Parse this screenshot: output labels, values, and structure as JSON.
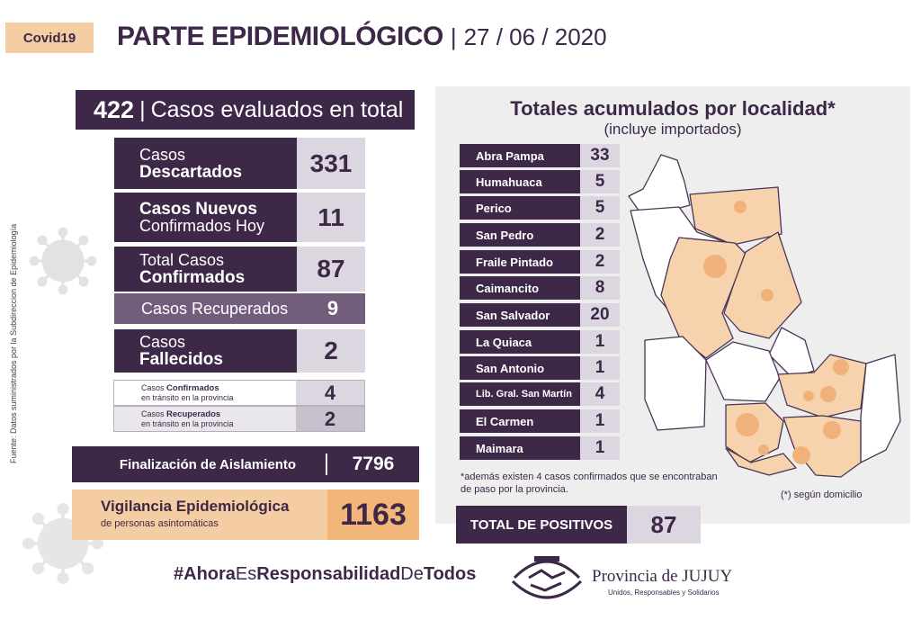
{
  "tag": "Covid19",
  "header": {
    "title": "PARTE EPIDEMIOLÓGICO",
    "date": "27 / 06 / 2020"
  },
  "source": "Fuente: Datos suministrados por la Subdireccion de Epidemiología",
  "evaluated": {
    "value": "422",
    "label": "Casos evaluados en total"
  },
  "descartados": {
    "line1": "Casos",
    "line2": "Descartados",
    "value": "331"
  },
  "nuevos": {
    "line1": "Casos Nuevos",
    "line2": "Confirmados Hoy",
    "value": "11"
  },
  "confirmados": {
    "line1": "Total Casos",
    "line2": "Confirmados",
    "value": "87"
  },
  "recuperados": {
    "label": "Casos Recuperados",
    "value": "9"
  },
  "fallecidos": {
    "line1": "Casos",
    "line2": "Fallecidos",
    "value": "2"
  },
  "transito_conf": {
    "pre": "Casos",
    "bold": "Confirmados",
    "sub": "en tránsito en la provincia",
    "value": "4"
  },
  "transito_rec": {
    "pre": "Casos",
    "bold": "Recuperados",
    "sub": "en tránsito en la provincia",
    "value": "2"
  },
  "aislamiento": {
    "label": "Finalización de Aislamiento",
    "value": "7796"
  },
  "vigilancia": {
    "label": "Vigilancia Epidemiológica",
    "sub": "de personas asintomáticas",
    "value": "1163"
  },
  "localidades": {
    "title": "Totales acumulados por localidad*",
    "subtitle": "(incluye importados)",
    "rows": [
      {
        "name": "Abra Pampa",
        "count": "33"
      },
      {
        "name": "Humahuaca",
        "count": "5"
      },
      {
        "name": "Perico",
        "count": "5"
      },
      {
        "name": "San Pedro",
        "count": "2"
      },
      {
        "name": "Fraile Pintado",
        "count": "2"
      },
      {
        "name": "Caimancito",
        "count": "8"
      },
      {
        "name": "San Salvador",
        "count": "20"
      },
      {
        "name": "La Quiaca",
        "count": "1"
      },
      {
        "name": "San Antonio",
        "count": "1"
      },
      {
        "name": "Lib. Gral. San Martín",
        "count": "4"
      },
      {
        "name": "El Carmen",
        "count": "1"
      },
      {
        "name": "Maimara",
        "count": "1"
      }
    ],
    "note": "*además existen 4 casos confirmados que se encontraban de paso por la provincia.",
    "map_note": "(*) según domicilio"
  },
  "total_positivos": {
    "label": "TOTAL DE POSITIVOS",
    "value": "87"
  },
  "footer": {
    "hashtag_parts": [
      "#Ahora",
      "Es",
      "Responsabilidad",
      "De",
      "Todos"
    ],
    "province": "Provincia de JUJUY",
    "province_sub": "Unidos, Responsables y Solidarios"
  },
  "colors": {
    "purple": "#3e2848",
    "peach": "#f5cda2",
    "orange": "#f2b679",
    "lavender": "#dbd6e0",
    "map_fill": "#f6d3ac",
    "bubble": "#f0b27a"
  }
}
